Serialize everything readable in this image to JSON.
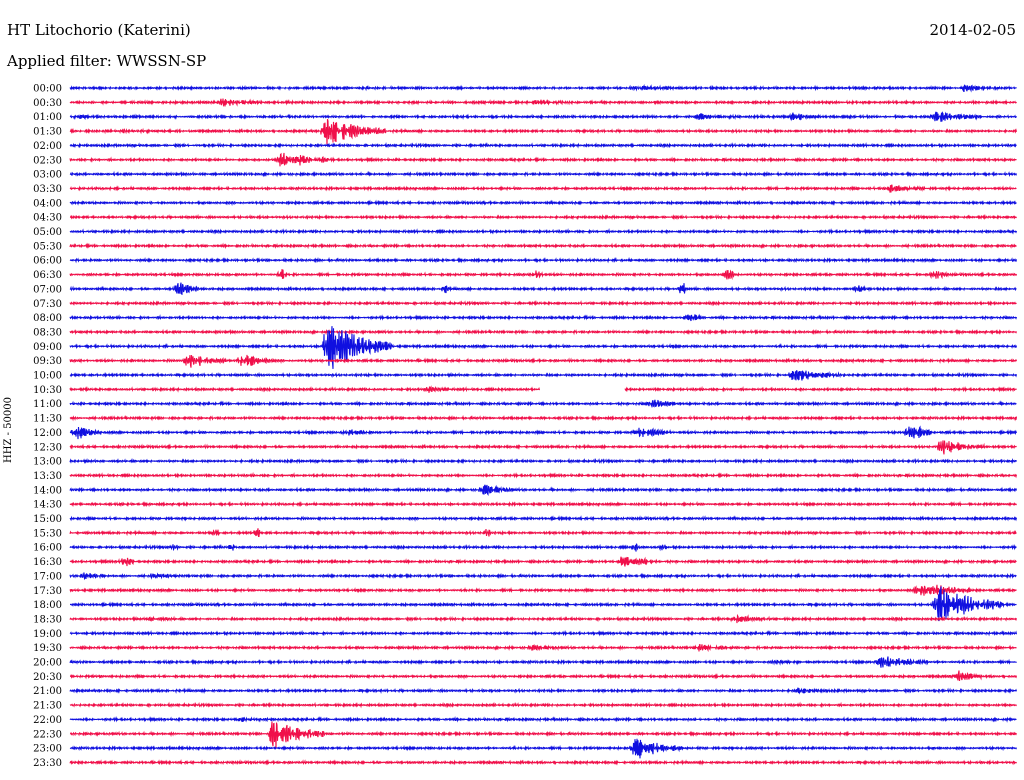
{
  "header": {
    "station": "HT Litochorio (Katerini)",
    "date": "2014-02-05",
    "filter": "Applied filter: WWSSN-SP"
  },
  "chart_data": {
    "type": "line",
    "title": "HT Litochorio (Katerini)",
    "subtitle": "Applied filter: WWSSN-SP",
    "ylabel": "HHZ - 50000",
    "xlabel": "",
    "grid": false,
    "legend": "none",
    "colors": {
      "blue": "#1010e0",
      "red": "#f0104a"
    },
    "row_colors": [
      "blue",
      "red"
    ],
    "row_labels": [
      "00:00",
      "00:30",
      "01:00",
      "01:30",
      "02:00",
      "02:30",
      "03:00",
      "03:30",
      "04:00",
      "04:30",
      "05:00",
      "05:30",
      "06:00",
      "06:30",
      "07:00",
      "07:30",
      "08:00",
      "08:30",
      "09:00",
      "09:30",
      "10:00",
      "10:30",
      "11:00",
      "11:30",
      "12:00",
      "12:30",
      "13:00",
      "13:30",
      "14:00",
      "14:30",
      "15:00",
      "15:30",
      "16:00",
      "16:30",
      "17:00",
      "17:30",
      "18:00",
      "18:30",
      "19:00",
      "19:30",
      "20:00",
      "20:30",
      "21:00",
      "21:30",
      "22:00",
      "22:30",
      "23:00",
      "23:30"
    ],
    "x_range_minutes": [
      0,
      30
    ],
    "events": [
      {
        "row": "00:00",
        "minute": 17.8,
        "amplitude": 0.25,
        "duration": 1.2
      },
      {
        "row": "00:00",
        "minute": 28.2,
        "amplitude": 0.35,
        "duration": 1.3
      },
      {
        "row": "00:30",
        "minute": 4.7,
        "amplitude": 0.45,
        "duration": 1.2
      },
      {
        "row": "00:30",
        "minute": 14.5,
        "amplitude": 0.25,
        "duration": 1.2
      },
      {
        "row": "01:00",
        "minute": 0.1,
        "amplitude": 0.3,
        "duration": 0.6
      },
      {
        "row": "01:00",
        "minute": 19.8,
        "amplitude": 0.3,
        "duration": 1.4
      },
      {
        "row": "01:00",
        "minute": 22.8,
        "amplitude": 0.4,
        "duration": 1.0
      },
      {
        "row": "01:00",
        "minute": 27.3,
        "amplitude": 0.6,
        "duration": 1.6
      },
      {
        "row": "01:30",
        "minute": 1.5,
        "amplitude": 0.15,
        "duration": 1.0
      },
      {
        "row": "01:30",
        "minute": 8.0,
        "amplitude": 1.6,
        "duration": 2.0
      },
      {
        "row": "02:30",
        "minute": 6.6,
        "amplitude": 1.2,
        "duration": 1.6
      },
      {
        "row": "03:30",
        "minute": 25.8,
        "amplitude": 0.45,
        "duration": 1.3
      },
      {
        "row": "06:30",
        "minute": 6.6,
        "amplitude": 0.6,
        "duration": 0.3
      },
      {
        "row": "06:30",
        "minute": 14.7,
        "amplitude": 0.8,
        "duration": 0.3
      },
      {
        "row": "06:30",
        "minute": 20.7,
        "amplitude": 0.5,
        "duration": 0.5
      },
      {
        "row": "06:30",
        "minute": 27.3,
        "amplitude": 0.5,
        "duration": 0.5
      },
      {
        "row": "07:00",
        "minute": 3.3,
        "amplitude": 0.8,
        "duration": 0.8
      },
      {
        "row": "07:00",
        "minute": 11.8,
        "amplitude": 0.5,
        "duration": 0.2
      },
      {
        "row": "07:00",
        "minute": 19.3,
        "amplitude": 0.8,
        "duration": 0.2
      },
      {
        "row": "07:00",
        "minute": 24.8,
        "amplitude": 0.5,
        "duration": 0.4
      },
      {
        "row": "08:00",
        "minute": 19.5,
        "amplitude": 0.5,
        "duration": 0.5
      },
      {
        "row": "09:00",
        "minute": 8.0,
        "amplitude": 3.0,
        "duration": 2.2
      },
      {
        "row": "09:30",
        "minute": 3.6,
        "amplitude": 0.8,
        "duration": 1.4
      },
      {
        "row": "09:30",
        "minute": 5.3,
        "amplitude": 0.8,
        "duration": 1.2
      },
      {
        "row": "10:00",
        "minute": 22.8,
        "amplitude": 0.7,
        "duration": 1.8
      },
      {
        "row": "10:30",
        "minute": 11.2,
        "amplitude": 0.3,
        "duration": 0.8
      },
      {
        "row": "11:00",
        "minute": 18.3,
        "amplitude": 0.45,
        "duration": 1.0
      },
      {
        "row": "11:30",
        "minute": 30.0,
        "amplitude": 0.6,
        "duration": 0.5
      },
      {
        "row": "12:00",
        "minute": 0.1,
        "amplitude": 0.7,
        "duration": 0.8
      },
      {
        "row": "12:00",
        "minute": 8.7,
        "amplitude": 0.3,
        "duration": 0.8
      },
      {
        "row": "12:00",
        "minute": 17.9,
        "amplitude": 0.5,
        "duration": 1.3
      },
      {
        "row": "12:00",
        "minute": 26.5,
        "amplitude": 1.2,
        "duration": 0.8
      },
      {
        "row": "12:30",
        "minute": 27.5,
        "amplitude": 0.8,
        "duration": 1.6
      },
      {
        "row": "14:00",
        "minute": 13.0,
        "amplitude": 0.6,
        "duration": 1.0
      },
      {
        "row": "15:30",
        "minute": 4.5,
        "amplitude": 0.5,
        "duration": 0.2
      },
      {
        "row": "15:30",
        "minute": 5.8,
        "amplitude": 0.5,
        "duration": 0.2
      },
      {
        "row": "15:30",
        "minute": 13.1,
        "amplitude": 0.5,
        "duration": 0.2
      },
      {
        "row": "16:00",
        "minute": 3.2,
        "amplitude": 0.4,
        "duration": 0.2
      },
      {
        "row": "16:00",
        "minute": 5.0,
        "amplitude": 0.4,
        "duration": 0.2
      },
      {
        "row": "16:00",
        "minute": 17.8,
        "amplitude": 0.4,
        "duration": 0.2
      },
      {
        "row": "16:00",
        "minute": 18.7,
        "amplitude": 0.4,
        "duration": 0.2
      },
      {
        "row": "16:30",
        "minute": 1.6,
        "amplitude": 0.6,
        "duration": 0.4
      },
      {
        "row": "16:30",
        "minute": 17.4,
        "amplitude": 0.8,
        "duration": 1.2
      },
      {
        "row": "17:00",
        "minute": 0.3,
        "amplitude": 0.4,
        "duration": 0.8
      },
      {
        "row": "17:00",
        "minute": 2.5,
        "amplitude": 0.2,
        "duration": 1.0
      },
      {
        "row": "17:30",
        "minute": 26.8,
        "amplitude": 1.0,
        "duration": 1.8
      },
      {
        "row": "18:00",
        "minute": 27.4,
        "amplitude": 2.2,
        "duration": 2.2
      },
      {
        "row": "18:30",
        "minute": 2.4,
        "amplitude": 0.2,
        "duration": 1.0
      },
      {
        "row": "18:30",
        "minute": 21.0,
        "amplitude": 0.4,
        "duration": 1.2
      },
      {
        "row": "19:30",
        "minute": 14.5,
        "amplitude": 0.25,
        "duration": 1.0
      },
      {
        "row": "19:30",
        "minute": 19.8,
        "amplitude": 0.3,
        "duration": 1.2
      },
      {
        "row": "20:00",
        "minute": 22.3,
        "amplitude": 0.2,
        "duration": 0.8
      },
      {
        "row": "20:00",
        "minute": 25.6,
        "amplitude": 0.7,
        "duration": 1.6
      },
      {
        "row": "20:30",
        "minute": 28.0,
        "amplitude": 0.6,
        "duration": 0.9
      },
      {
        "row": "21:00",
        "minute": 22.9,
        "amplitude": 0.25,
        "duration": 1.2
      },
      {
        "row": "22:00",
        "minute": 5.3,
        "amplitude": 0.2,
        "duration": 1.0
      },
      {
        "row": "22:30",
        "minute": 6.3,
        "amplitude": 1.6,
        "duration": 1.8
      },
      {
        "row": "23:00",
        "minute": 17.8,
        "amplitude": 1.2,
        "duration": 1.6
      }
    ],
    "gaps": [
      {
        "row": "10:30",
        "start_minute": 14.9,
        "end_minute": 17.6
      }
    ]
  }
}
